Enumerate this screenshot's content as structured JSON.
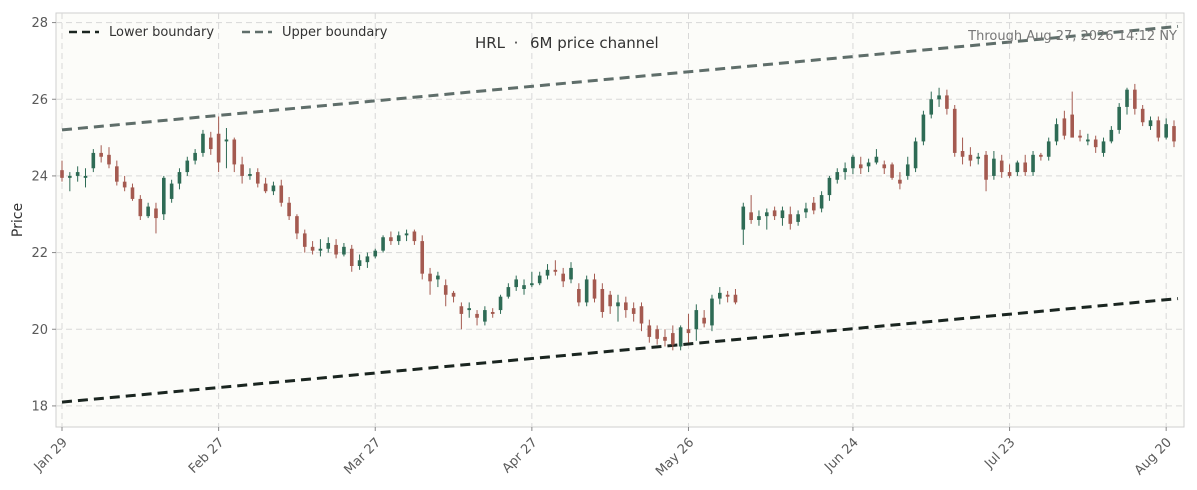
{
  "chart_data": {
    "type": "candlestick",
    "title_symbol": "HRL",
    "title_separator": "·",
    "title_text": "6M price channel",
    "as_of": "Through Aug 27, 2026 14:12 NY",
    "ylabel": "Price",
    "ylim": [
      17.45,
      28.25
    ],
    "y_ticks": [
      18,
      20,
      22,
      24,
      26,
      28
    ],
    "x_ticks": [
      "Jan 29",
      "Feb 27",
      "Mar 27",
      "Apr 27",
      "May 26",
      "Jun 24",
      "Jul 23",
      "Aug 20"
    ],
    "grid": true,
    "legend_position": "top-left",
    "colors": {
      "up": "#2e6b55",
      "down": "#a45a50",
      "background": "#fcfcf9",
      "grid": "#d8d8d8",
      "lower": "#1a2520",
      "upper": "#5f6e6a"
    },
    "channel": [
      {
        "name": "Lower boundary",
        "start": 18.1,
        "end": 20.8,
        "color": "#1a2520"
      },
      {
        "name": "Upper boundary",
        "start": 25.2,
        "end": 27.9,
        "color": "#5f6e6a"
      }
    ],
    "ohlc": [
      {
        "x": "Jan 29",
        "o": 24.15,
        "h": 24.4,
        "l": 23.85,
        "c": 23.95
      },
      {
        "x": "Jan 30",
        "o": 23.95,
        "h": 24.1,
        "l": 23.6,
        "c": 24.0
      },
      {
        "x": "Feb 2",
        "o": 24.0,
        "h": 24.25,
        "l": 23.85,
        "c": 24.1
      },
      {
        "x": "Feb 3",
        "o": 23.95,
        "h": 24.2,
        "l": 23.7,
        "c": 24.0
      },
      {
        "x": "Feb 4",
        "o": 24.2,
        "h": 24.7,
        "l": 24.1,
        "c": 24.6
      },
      {
        "x": "Feb 5",
        "o": 24.6,
        "h": 24.8,
        "l": 24.35,
        "c": 24.5
      },
      {
        "x": "Feb 6",
        "o": 24.55,
        "h": 24.75,
        "l": 24.2,
        "c": 24.3
      },
      {
        "x": "Feb 9",
        "o": 24.25,
        "h": 24.4,
        "l": 23.75,
        "c": 23.85
      },
      {
        "x": "Feb 10",
        "o": 23.85,
        "h": 24.0,
        "l": 23.6,
        "c": 23.7
      },
      {
        "x": "Feb 11",
        "o": 23.7,
        "h": 23.8,
        "l": 23.35,
        "c": 23.4
      },
      {
        "x": "Feb 12",
        "o": 23.4,
        "h": 23.5,
        "l": 22.85,
        "c": 22.95
      },
      {
        "x": "Feb 13",
        "o": 22.95,
        "h": 23.3,
        "l": 22.9,
        "c": 23.2
      },
      {
        "x": "Feb 17",
        "o": 23.15,
        "h": 23.3,
        "l": 22.5,
        "c": 22.9
      },
      {
        "x": "Feb 18",
        "o": 23.0,
        "h": 24.0,
        "l": 22.85,
        "c": 23.95
      },
      {
        "x": "Feb 19",
        "o": 23.4,
        "h": 23.9,
        "l": 23.3,
        "c": 23.8
      },
      {
        "x": "Feb 20",
        "o": 23.8,
        "h": 24.2,
        "l": 23.65,
        "c": 24.1
      },
      {
        "x": "Feb 23",
        "o": 24.1,
        "h": 24.5,
        "l": 24.0,
        "c": 24.4
      },
      {
        "x": "Feb 24",
        "o": 24.4,
        "h": 24.7,
        "l": 24.3,
        "c": 24.6
      },
      {
        "x": "Feb 25",
        "o": 24.6,
        "h": 25.2,
        "l": 24.5,
        "c": 25.1
      },
      {
        "x": "Feb 26",
        "o": 25.0,
        "h": 25.15,
        "l": 24.55,
        "c": 24.7
      },
      {
        "x": "Feb 27",
        "o": 25.1,
        "h": 25.55,
        "l": 24.1,
        "c": 24.35
      },
      {
        "x": "Mar 2",
        "o": 24.9,
        "h": 25.25,
        "l": 24.2,
        "c": 24.95
      },
      {
        "x": "Mar 3",
        "o": 24.95,
        "h": 25.0,
        "l": 24.1,
        "c": 24.3
      },
      {
        "x": "Mar 4",
        "o": 24.3,
        "h": 24.5,
        "l": 23.8,
        "c": 24.0
      },
      {
        "x": "Mar 5",
        "o": 24.0,
        "h": 24.2,
        "l": 23.9,
        "c": 24.05
      },
      {
        "x": "Mar 6",
        "o": 24.1,
        "h": 24.2,
        "l": 23.7,
        "c": 23.8
      },
      {
        "x": "Mar 9",
        "o": 23.8,
        "h": 23.95,
        "l": 23.55,
        "c": 23.6
      },
      {
        "x": "Mar 10",
        "o": 23.6,
        "h": 23.85,
        "l": 23.5,
        "c": 23.75
      },
      {
        "x": "Mar 11",
        "o": 23.75,
        "h": 23.9,
        "l": 23.2,
        "c": 23.3
      },
      {
        "x": "Mar 12",
        "o": 23.3,
        "h": 23.45,
        "l": 22.85,
        "c": 22.95
      },
      {
        "x": "Mar 13",
        "o": 22.95,
        "h": 23.0,
        "l": 22.35,
        "c": 22.5
      },
      {
        "x": "Mar 16",
        "o": 22.5,
        "h": 22.6,
        "l": 22.0,
        "c": 22.15
      },
      {
        "x": "Mar 17",
        "o": 22.15,
        "h": 22.3,
        "l": 21.95,
        "c": 22.05
      },
      {
        "x": "Mar 18",
        "o": 22.05,
        "h": 22.35,
        "l": 21.9,
        "c": 22.1
      },
      {
        "x": "Mar 19",
        "o": 22.1,
        "h": 22.4,
        "l": 22.0,
        "c": 22.25
      },
      {
        "x": "Mar 20",
        "o": 22.2,
        "h": 22.35,
        "l": 21.85,
        "c": 21.95
      },
      {
        "x": "Mar 23",
        "o": 21.95,
        "h": 22.25,
        "l": 21.9,
        "c": 22.15
      },
      {
        "x": "Mar 24",
        "o": 22.1,
        "h": 22.2,
        "l": 21.5,
        "c": 21.65
      },
      {
        "x": "Mar 25",
        "o": 21.65,
        "h": 21.95,
        "l": 21.55,
        "c": 21.8
      },
      {
        "x": "Mar 26",
        "o": 21.75,
        "h": 22.0,
        "l": 21.6,
        "c": 21.9
      },
      {
        "x": "Mar 27",
        "o": 21.9,
        "h": 22.1,
        "l": 21.85,
        "c": 22.05
      },
      {
        "x": "Mar 30",
        "o": 22.05,
        "h": 22.45,
        "l": 22.0,
        "c": 22.4
      },
      {
        "x": "Mar 31",
        "o": 22.4,
        "h": 22.55,
        "l": 22.2,
        "c": 22.3
      },
      {
        "x": "Apr 1",
        "o": 22.3,
        "h": 22.55,
        "l": 22.2,
        "c": 22.45
      },
      {
        "x": "Apr 2",
        "o": 22.45,
        "h": 22.6,
        "l": 22.3,
        "c": 22.5
      },
      {
        "x": "Apr 6",
        "o": 22.55,
        "h": 22.6,
        "l": 22.2,
        "c": 22.3
      },
      {
        "x": "Apr 7",
        "o": 22.3,
        "h": 22.45,
        "l": 21.3,
        "c": 21.45
      },
      {
        "x": "Apr 8",
        "o": 21.45,
        "h": 21.6,
        "l": 20.9,
        "c": 21.25
      },
      {
        "x": "Apr 9",
        "o": 21.3,
        "h": 21.5,
        "l": 21.1,
        "c": 21.4
      },
      {
        "x": "Apr 10",
        "o": 21.15,
        "h": 21.3,
        "l": 20.6,
        "c": 20.9
      },
      {
        "x": "Apr 13",
        "o": 20.95,
        "h": 21.0,
        "l": 20.7,
        "c": 20.85
      },
      {
        "x": "Apr 14",
        "o": 20.6,
        "h": 20.7,
        "l": 20.0,
        "c": 20.4
      },
      {
        "x": "Apr 15",
        "o": 20.5,
        "h": 20.7,
        "l": 20.3,
        "c": 20.55
      },
      {
        "x": "Apr 16",
        "o": 20.4,
        "h": 20.5,
        "l": 20.1,
        "c": 20.3
      },
      {
        "x": "Apr 17",
        "o": 20.2,
        "h": 20.6,
        "l": 20.1,
        "c": 20.5
      },
      {
        "x": "Apr 20",
        "o": 20.45,
        "h": 20.55,
        "l": 20.3,
        "c": 20.4
      },
      {
        "x": "Apr 21",
        "o": 20.5,
        "h": 20.9,
        "l": 20.4,
        "c": 20.85
      },
      {
        "x": "Apr 22",
        "o": 20.85,
        "h": 21.2,
        "l": 20.8,
        "c": 21.1
      },
      {
        "x": "Apr 23",
        "o": 21.1,
        "h": 21.4,
        "l": 21.0,
        "c": 21.3
      },
      {
        "x": "Apr 24",
        "o": 21.05,
        "h": 21.3,
        "l": 20.9,
        "c": 21.15
      },
      {
        "x": "Apr 27",
        "o": 21.15,
        "h": 21.5,
        "l": 21.1,
        "c": 21.2
      },
      {
        "x": "Apr 28",
        "o": 21.2,
        "h": 21.5,
        "l": 21.15,
        "c": 21.4
      },
      {
        "x": "Apr 29",
        "o": 21.4,
        "h": 21.7,
        "l": 21.3,
        "c": 21.55
      },
      {
        "x": "Apr 30",
        "o": 21.55,
        "h": 21.8,
        "l": 21.4,
        "c": 21.5
      },
      {
        "x": "May 1",
        "o": 21.45,
        "h": 21.6,
        "l": 21.1,
        "c": 21.25
      },
      {
        "x": "May 4",
        "o": 21.3,
        "h": 21.75,
        "l": 21.2,
        "c": 21.6
      },
      {
        "x": "May 5",
        "o": 21.05,
        "h": 21.2,
        "l": 20.6,
        "c": 20.7
      },
      {
        "x": "May 6",
        "o": 20.7,
        "h": 21.4,
        "l": 20.6,
        "c": 21.3
      },
      {
        "x": "May 7",
        "o": 21.3,
        "h": 21.45,
        "l": 20.7,
        "c": 20.8
      },
      {
        "x": "May 8",
        "o": 21.05,
        "h": 21.2,
        "l": 20.3,
        "c": 20.45
      },
      {
        "x": "May 11",
        "o": 20.9,
        "h": 21.0,
        "l": 20.4,
        "c": 20.6
      },
      {
        "x": "May 12",
        "o": 20.6,
        "h": 20.9,
        "l": 20.2,
        "c": 20.7
      },
      {
        "x": "May 13",
        "o": 20.7,
        "h": 20.85,
        "l": 20.3,
        "c": 20.5
      },
      {
        "x": "May 14",
        "o": 20.55,
        "h": 20.7,
        "l": 20.2,
        "c": 20.4
      },
      {
        "x": "May 15",
        "o": 20.6,
        "h": 20.7,
        "l": 19.95,
        "c": 20.15
      },
      {
        "x": "May 18",
        "o": 20.1,
        "h": 20.25,
        "l": 19.65,
        "c": 19.8
      },
      {
        "x": "May 19",
        "o": 20.0,
        "h": 20.1,
        "l": 19.6,
        "c": 19.75
      },
      {
        "x": "May 20",
        "o": 19.8,
        "h": 20.0,
        "l": 19.55,
        "c": 19.7
      },
      {
        "x": "May 21",
        "o": 19.9,
        "h": 20.1,
        "l": 19.45,
        "c": 19.6
      },
      {
        "x": "May 22",
        "o": 19.55,
        "h": 20.1,
        "l": 19.45,
        "c": 20.05
      },
      {
        "x": "May 26",
        "o": 20.0,
        "h": 20.4,
        "l": 19.65,
        "c": 19.9
      },
      {
        "x": "May 27",
        "o": 20.0,
        "h": 20.65,
        "l": 19.7,
        "c": 20.5
      },
      {
        "x": "May 28",
        "o": 20.3,
        "h": 20.5,
        "l": 20.05,
        "c": 20.15
      },
      {
        "x": "May 29",
        "o": 20.1,
        "h": 20.9,
        "l": 19.95,
        "c": 20.8
      },
      {
        "x": "Jun 1",
        "o": 20.8,
        "h": 21.1,
        "l": 20.65,
        "c": 20.95
      },
      {
        "x": "Jun 2",
        "o": 20.9,
        "h": 21.0,
        "l": 20.7,
        "c": 20.85
      },
      {
        "x": "Jun 3",
        "o": 20.9,
        "h": 21.05,
        "l": 20.65,
        "c": 20.7
      },
      {
        "x": "Jun 4",
        "o": 22.6,
        "h": 23.3,
        "l": 22.2,
        "c": 23.2
      },
      {
        "x": "Jun 5",
        "o": 23.05,
        "h": 23.5,
        "l": 22.75,
        "c": 22.85
      },
      {
        "x": "Jun 8",
        "o": 22.85,
        "h": 23.1,
        "l": 22.7,
        "c": 22.95
      },
      {
        "x": "Jun 9",
        "o": 22.95,
        "h": 23.15,
        "l": 22.6,
        "c": 23.05
      },
      {
        "x": "Jun 10",
        "o": 23.1,
        "h": 23.2,
        "l": 22.85,
        "c": 22.95
      },
      {
        "x": "Jun 11",
        "o": 22.9,
        "h": 23.2,
        "l": 22.7,
        "c": 23.1
      },
      {
        "x": "Jun 12",
        "o": 23.0,
        "h": 23.2,
        "l": 22.6,
        "c": 22.75
      },
      {
        "x": "Jun 15",
        "o": 22.8,
        "h": 23.1,
        "l": 22.7,
        "c": 23.0
      },
      {
        "x": "Jun 16",
        "o": 23.05,
        "h": 23.3,
        "l": 22.9,
        "c": 23.15
      },
      {
        "x": "Jun 17",
        "o": 23.3,
        "h": 23.45,
        "l": 23.0,
        "c": 23.1
      },
      {
        "x": "Jun 18",
        "o": 23.15,
        "h": 23.6,
        "l": 23.05,
        "c": 23.5
      },
      {
        "x": "Jun 19",
        "o": 23.5,
        "h": 24.0,
        "l": 23.35,
        "c": 23.95
      },
      {
        "x": "Jun 22",
        "o": 23.9,
        "h": 24.2,
        "l": 23.8,
        "c": 24.1
      },
      {
        "x": "Jun 23",
        "o": 24.1,
        "h": 24.35,
        "l": 23.9,
        "c": 24.2
      },
      {
        "x": "Jun 24",
        "o": 24.2,
        "h": 24.55,
        "l": 24.05,
        "c": 24.5
      },
      {
        "x": "Jun 25",
        "o": 24.3,
        "h": 24.5,
        "l": 24.05,
        "c": 24.2
      },
      {
        "x": "Jun 26",
        "o": 24.25,
        "h": 24.45,
        "l": 24.1,
        "c": 24.35
      },
      {
        "x": "Jun 29",
        "o": 24.35,
        "h": 24.7,
        "l": 24.3,
        "c": 24.5
      },
      {
        "x": "Jun 30",
        "o": 24.3,
        "h": 24.4,
        "l": 24.05,
        "c": 24.2
      },
      {
        "x": "Jul 1",
        "o": 24.3,
        "h": 24.35,
        "l": 23.9,
        "c": 23.95
      },
      {
        "x": "Jul 2",
        "o": 23.9,
        "h": 24.1,
        "l": 23.65,
        "c": 23.8
      },
      {
        "x": "Jul 6",
        "o": 24.0,
        "h": 24.5,
        "l": 23.9,
        "c": 24.3
      },
      {
        "x": "Jul 7",
        "o": 24.2,
        "h": 25.0,
        "l": 24.1,
        "c": 24.9
      },
      {
        "x": "Jul 8",
        "o": 24.9,
        "h": 25.7,
        "l": 24.8,
        "c": 25.6
      },
      {
        "x": "Jul 9",
        "o": 25.6,
        "h": 26.2,
        "l": 25.5,
        "c": 26.0
      },
      {
        "x": "Jul 10",
        "o": 26.0,
        "h": 26.3,
        "l": 25.8,
        "c": 26.1
      },
      {
        "x": "Jul 13",
        "o": 26.1,
        "h": 26.25,
        "l": 25.6,
        "c": 25.75
      },
      {
        "x": "Jul 14",
        "o": 25.75,
        "h": 25.85,
        "l": 24.5,
        "c": 24.6
      },
      {
        "x": "Jul 15",
        "o": 24.65,
        "h": 25.0,
        "l": 24.3,
        "c": 24.5
      },
      {
        "x": "Jul 16",
        "o": 24.55,
        "h": 24.75,
        "l": 24.25,
        "c": 24.4
      },
      {
        "x": "Jul 17",
        "o": 24.45,
        "h": 24.6,
        "l": 24.3,
        "c": 24.5
      },
      {
        "x": "Jul 20",
        "o": 24.55,
        "h": 24.65,
        "l": 23.6,
        "c": 23.9
      },
      {
        "x": "Jul 21",
        "o": 24.0,
        "h": 24.65,
        "l": 23.9,
        "c": 24.45
      },
      {
        "x": "Jul 22",
        "o": 24.4,
        "h": 24.55,
        "l": 23.95,
        "c": 24.1
      },
      {
        "x": "Jul 23",
        "o": 24.1,
        "h": 24.3,
        "l": 23.95,
        "c": 24.0
      },
      {
        "x": "Jul 24",
        "o": 24.1,
        "h": 24.4,
        "l": 24.0,
        "c": 24.35
      },
      {
        "x": "Jul 27",
        "o": 24.35,
        "h": 24.55,
        "l": 24.0,
        "c": 24.1
      },
      {
        "x": "Jul 28",
        "o": 24.1,
        "h": 24.65,
        "l": 24.0,
        "c": 24.55
      },
      {
        "x": "Jul 29",
        "o": 24.55,
        "h": 24.6,
        "l": 24.4,
        "c": 24.5
      },
      {
        "x": "Jul 30",
        "o": 24.5,
        "h": 25.0,
        "l": 24.4,
        "c": 24.9
      },
      {
        "x": "Jul 31",
        "o": 24.9,
        "h": 25.5,
        "l": 24.8,
        "c": 25.35
      },
      {
        "x": "Aug 3",
        "o": 25.5,
        "h": 25.7,
        "l": 24.95,
        "c": 25.05
      },
      {
        "x": "Aug 4",
        "o": 25.6,
        "h": 26.2,
        "l": 25.1,
        "c": 25.0
      },
      {
        "x": "Aug 5",
        "o": 25.05,
        "h": 25.2,
        "l": 24.9,
        "c": 25.0
      },
      {
        "x": "Aug 6",
        "o": 24.9,
        "h": 25.1,
        "l": 24.8,
        "c": 24.95
      },
      {
        "x": "Aug 7",
        "o": 24.95,
        "h": 25.05,
        "l": 24.6,
        "c": 24.75
      },
      {
        "x": "Aug 10",
        "o": 24.6,
        "h": 25.0,
        "l": 24.5,
        "c": 24.9
      },
      {
        "x": "Aug 11",
        "o": 24.9,
        "h": 25.3,
        "l": 24.85,
        "c": 25.2
      },
      {
        "x": "Aug 12",
        "o": 25.2,
        "h": 25.9,
        "l": 25.1,
        "c": 25.8
      },
      {
        "x": "Aug 13",
        "o": 25.8,
        "h": 26.3,
        "l": 25.6,
        "c": 26.25
      },
      {
        "x": "Aug 14",
        "o": 26.25,
        "h": 26.4,
        "l": 25.6,
        "c": 25.75
      },
      {
        "x": "Aug 17",
        "o": 25.75,
        "h": 25.85,
        "l": 25.3,
        "c": 25.4
      },
      {
        "x": "Aug 18",
        "o": 25.3,
        "h": 25.55,
        "l": 25.2,
        "c": 25.45
      },
      {
        "x": "Aug 19",
        "o": 25.45,
        "h": 25.55,
        "l": 24.9,
        "c": 25.0
      },
      {
        "x": "Aug 20",
        "o": 25.0,
        "h": 25.5,
        "l": 24.95,
        "c": 25.35
      },
      {
        "x": "Aug 21",
        "o": 25.3,
        "h": 25.45,
        "l": 24.75,
        "c": 24.9
      }
    ]
  }
}
